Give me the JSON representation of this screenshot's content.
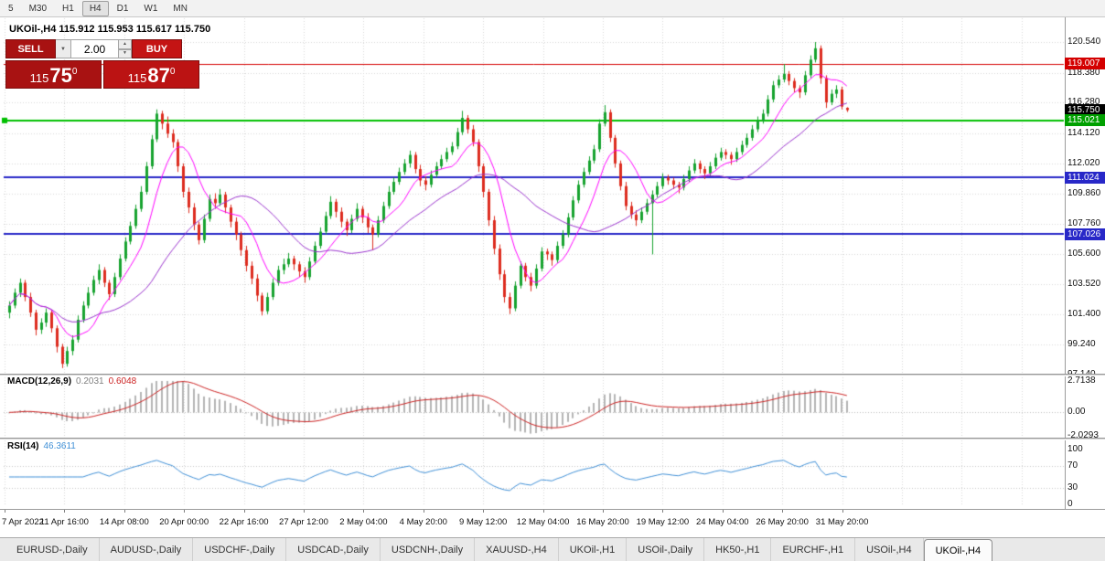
{
  "toolbar": {
    "timeframes": [
      "5",
      "M30",
      "H1",
      "H4",
      "D1",
      "W1",
      "MN"
    ],
    "active_timeframe": "H4"
  },
  "chart_header": {
    "title": "UKOil-,H4 115.912 115.953 115.617 115.750"
  },
  "trade_panel": {
    "sell_label": "SELL",
    "buy_label": "BUY",
    "volume": "2.00",
    "bid_main": "115",
    "bid_big": "75",
    "bid_sup": "0",
    "ask_main": "115",
    "ask_big": "87",
    "ask_sup": "0"
  },
  "price_axis": {
    "ticks": [
      "120.540",
      "118.380",
      "116.280",
      "114.120",
      "112.020",
      "109.860",
      "107.760",
      "105.600",
      "103.520",
      "101.400",
      "99.240",
      "97.140"
    ],
    "badges": [
      {
        "text": "119.007",
        "color": "#d40000"
      },
      {
        "text": "115.750",
        "color": "#000000"
      },
      {
        "text": "115.021",
        "color": "#00a000"
      },
      {
        "text": "111.024",
        "color": "#2828c8"
      },
      {
        "text": "107.026",
        "color": "#2828c8"
      }
    ]
  },
  "indicator_panes": {
    "macd": {
      "name": "MACD(12,26,9)",
      "value_main": "0.2031",
      "value_signal": "0.6048",
      "axis": [
        "2.7138",
        "0.00",
        "-2.0293"
      ]
    },
    "rsi": {
      "name": "RSI(14)",
      "value": "46.3611",
      "axis": [
        "100",
        "70",
        "30",
        "0"
      ]
    }
  },
  "tab_bar": {
    "tabs": [
      "EURUSD-,Daily",
      "AUDUSD-,Daily",
      "USDCHF-,Daily",
      "USDCAD-,Daily",
      "USDCNH-,Daily",
      "XAUUSD-,H4",
      "UKOil-,H1",
      "USOil-,Daily",
      "HK50-,H1",
      "EURCHF-,H1",
      "USOil-,H4",
      "UKOil-,H4"
    ],
    "active": "UKOil-,H4"
  },
  "chart_data": {
    "type": "candlestick",
    "symbol": "UKOil-",
    "timeframe": "H4",
    "current_candle": {
      "open": 115.912,
      "high": 115.953,
      "low": 115.617,
      "close": 115.75
    },
    "ylim": [
      97.14,
      120.54
    ],
    "x_labels": [
      "7 Apr 2022",
      "11 Apr 16:00",
      "14 Apr 08:00",
      "20 Apr 00:00",
      "22 Apr 16:00",
      "27 Apr 12:00",
      "2 May 04:00",
      "4 May 20:00",
      "9 May 12:00",
      "12 May 04:00",
      "16 May 20:00",
      "19 May 12:00",
      "24 May 04:00",
      "26 May 20:00",
      "31 May 20:00"
    ],
    "levels": [
      {
        "price": 119.007,
        "color": "#d40000",
        "width": 1,
        "style": "solid"
      },
      {
        "price": 115.021,
        "color": "#00c000",
        "width": 2,
        "style": "solid"
      },
      {
        "price": 111.024,
        "color": "#2828c8",
        "width": 2,
        "style": "solid"
      },
      {
        "price": 107.026,
        "color": "#2828c8",
        "width": 2,
        "style": "solid"
      }
    ],
    "colors": {
      "up": "#17a32f",
      "down": "#dd2c1f",
      "ma_fast": "#ff00ff",
      "ma_slow": "#9932cc",
      "macd_hist": "#b4b4b4",
      "macd_signal": "#cc2222",
      "rsi_line": "#3f8fd6"
    },
    "ma_overlays": [
      {
        "period": 8,
        "color": "#ff00ff"
      },
      {
        "period": 24,
        "color": "#9932cc"
      }
    ],
    "macd": {
      "fast": 12,
      "slow": 26,
      "signal": 9,
      "range": [
        -2.0293,
        2.7138
      ]
    },
    "rsi": {
      "period": 14,
      "levels": [
        70,
        30
      ],
      "range": [
        0,
        100
      ]
    },
    "candles": [
      [
        101.5,
        102.3,
        101.1,
        102.0
      ],
      [
        102.0,
        103.2,
        101.8,
        102.9
      ],
      [
        102.9,
        103.9,
        102.6,
        103.6
      ],
      [
        103.6,
        103.8,
        102.3,
        102.6
      ],
      [
        102.6,
        102.9,
        101.2,
        101.5
      ],
      [
        101.5,
        101.7,
        99.9,
        100.3
      ],
      [
        100.3,
        101.1,
        100.0,
        100.8
      ],
      [
        100.8,
        101.8,
        100.5,
        101.5
      ],
      [
        101.5,
        101.7,
        100.1,
        100.4
      ],
      [
        100.4,
        100.6,
        98.7,
        99.1
      ],
      [
        99.1,
        99.3,
        97.6,
        97.9
      ],
      [
        97.9,
        99.1,
        97.7,
        98.8
      ],
      [
        98.8,
        99.9,
        98.5,
        99.6
      ],
      [
        99.6,
        101.3,
        99.4,
        101.0
      ],
      [
        101.0,
        102.3,
        100.8,
        102.0
      ],
      [
        102.0,
        103.3,
        101.8,
        102.9
      ],
      [
        102.9,
        104.1,
        102.7,
        103.8
      ],
      [
        103.8,
        104.9,
        103.5,
        104.5
      ],
      [
        104.5,
        104.7,
        103.3,
        103.6
      ],
      [
        103.6,
        103.8,
        102.4,
        102.8
      ],
      [
        102.8,
        104.3,
        102.6,
        104.0
      ],
      [
        104.0,
        105.6,
        103.8,
        105.3
      ],
      [
        105.3,
        106.8,
        105.1,
        106.5
      ],
      [
        106.5,
        107.9,
        106.3,
        107.6
      ],
      [
        107.6,
        109.1,
        107.4,
        108.8
      ],
      [
        108.8,
        110.4,
        108.6,
        110.0
      ],
      [
        110.0,
        112.1,
        109.8,
        111.8
      ],
      [
        111.8,
        114.0,
        111.6,
        113.7
      ],
      [
        113.7,
        115.8,
        113.5,
        115.5
      ],
      [
        115.5,
        115.7,
        114.4,
        114.8
      ],
      [
        114.8,
        115.3,
        113.8,
        114.1
      ],
      [
        114.1,
        114.4,
        113.1,
        113.5
      ],
      [
        113.5,
        113.7,
        111.4,
        111.8
      ],
      [
        111.8,
        112.0,
        109.6,
        110.0
      ],
      [
        110.0,
        110.3,
        108.5,
        108.9
      ],
      [
        108.9,
        109.2,
        107.3,
        107.7
      ],
      [
        107.7,
        107.9,
        106.3,
        106.6
      ],
      [
        106.6,
        108.4,
        106.4,
        108.1
      ],
      [
        108.1,
        109.8,
        107.9,
        109.5
      ],
      [
        109.5,
        109.9,
        108.8,
        109.2
      ],
      [
        109.2,
        110.2,
        109.0,
        109.8
      ],
      [
        109.8,
        110.0,
        108.5,
        108.9
      ],
      [
        108.9,
        109.1,
        107.5,
        107.9
      ],
      [
        107.9,
        108.2,
        106.6,
        107.0
      ],
      [
        107.0,
        107.2,
        105.5,
        105.9
      ],
      [
        105.9,
        106.2,
        104.4,
        104.8
      ],
      [
        104.8,
        105.1,
        103.5,
        103.9
      ],
      [
        103.9,
        104.2,
        102.3,
        102.7
      ],
      [
        102.7,
        102.9,
        101.3,
        101.6
      ],
      [
        101.6,
        102.9,
        101.4,
        102.6
      ],
      [
        102.6,
        103.9,
        102.4,
        103.6
      ],
      [
        103.6,
        104.8,
        103.4,
        104.5
      ],
      [
        104.5,
        105.3,
        104.2,
        104.9
      ],
      [
        104.9,
        105.7,
        104.7,
        105.3
      ],
      [
        105.3,
        105.5,
        104.5,
        104.9
      ],
      [
        104.9,
        105.1,
        104.0,
        104.4
      ],
      [
        104.4,
        104.7,
        103.6,
        104.0
      ],
      [
        104.0,
        105.4,
        103.8,
        105.1
      ],
      [
        105.1,
        106.5,
        104.9,
        106.2
      ],
      [
        106.2,
        107.5,
        106.0,
        107.2
      ],
      [
        107.2,
        108.6,
        107.0,
        108.3
      ],
      [
        108.3,
        109.7,
        108.1,
        109.3
      ],
      [
        109.3,
        109.5,
        108.2,
        108.6
      ],
      [
        108.6,
        108.9,
        107.5,
        107.9
      ],
      [
        107.9,
        108.1,
        106.9,
        107.3
      ],
      [
        107.3,
        108.4,
        107.1,
        108.1
      ],
      [
        108.1,
        109.2,
        107.9,
        108.8
      ],
      [
        108.8,
        109.0,
        107.8,
        108.2
      ],
      [
        108.2,
        108.5,
        107.1,
        107.5
      ],
      [
        107.5,
        107.7,
        105.9,
        107.0
      ],
      [
        107.0,
        108.3,
        106.8,
        108.0
      ],
      [
        108.0,
        109.3,
        107.8,
        109.0
      ],
      [
        109.0,
        110.4,
        108.8,
        110.0
      ],
      [
        110.0,
        111.0,
        109.8,
        110.7
      ],
      [
        110.7,
        111.7,
        110.5,
        111.4
      ],
      [
        111.4,
        112.3,
        111.2,
        112.0
      ],
      [
        112.0,
        112.9,
        111.7,
        112.6
      ],
      [
        112.6,
        112.8,
        111.3,
        111.6
      ],
      [
        111.6,
        111.9,
        110.4,
        110.8
      ],
      [
        110.8,
        111.1,
        110.1,
        110.5
      ],
      [
        110.5,
        111.5,
        110.3,
        111.2
      ],
      [
        111.2,
        112.1,
        111.0,
        111.8
      ],
      [
        111.8,
        112.6,
        111.6,
        112.3
      ],
      [
        112.3,
        113.1,
        112.1,
        112.8
      ],
      [
        112.8,
        113.5,
        112.6,
        113.2
      ],
      [
        113.2,
        114.5,
        113.0,
        114.2
      ],
      [
        114.2,
        115.7,
        114.0,
        115.2
      ],
      [
        115.2,
        115.4,
        114.1,
        114.4
      ],
      [
        114.4,
        114.7,
        113.2,
        113.5
      ],
      [
        113.5,
        113.7,
        111.4,
        111.8
      ],
      [
        111.8,
        112.0,
        109.6,
        110.0
      ],
      [
        110.0,
        110.2,
        107.6,
        108.0
      ],
      [
        108.0,
        108.3,
        105.6,
        106.0
      ],
      [
        106.0,
        106.3,
        103.8,
        104.2
      ],
      [
        104.2,
        104.5,
        102.2,
        102.6
      ],
      [
        102.6,
        102.9,
        101.4,
        101.8
      ],
      [
        101.8,
        103.7,
        101.6,
        103.4
      ],
      [
        103.4,
        105.1,
        103.2,
        104.8
      ],
      [
        104.8,
        105.0,
        103.7,
        104.0
      ],
      [
        104.0,
        104.3,
        103.0,
        103.4
      ],
      [
        103.4,
        104.9,
        103.2,
        104.6
      ],
      [
        104.6,
        106.1,
        104.4,
        105.8
      ],
      [
        105.8,
        106.0,
        105.2,
        105.6
      ],
      [
        105.6,
        105.8,
        104.8,
        105.2
      ],
      [
        105.2,
        106.5,
        105.0,
        106.2
      ],
      [
        106.2,
        107.3,
        106.0,
        107.0
      ],
      [
        107.0,
        108.5,
        106.8,
        108.2
      ],
      [
        108.2,
        109.7,
        108.0,
        109.4
      ],
      [
        109.4,
        110.8,
        109.2,
        110.5
      ],
      [
        110.5,
        111.7,
        110.3,
        111.4
      ],
      [
        111.4,
        112.5,
        111.2,
        112.2
      ],
      [
        112.2,
        113.3,
        112.0,
        113.0
      ],
      [
        113.0,
        115.1,
        112.8,
        114.8
      ],
      [
        114.8,
        116.1,
        114.6,
        115.6
      ],
      [
        115.6,
        115.8,
        113.5,
        113.8
      ],
      [
        113.8,
        114.0,
        111.7,
        112.0
      ],
      [
        112.0,
        112.2,
        110.1,
        110.4
      ],
      [
        110.4,
        110.7,
        108.7,
        109.0
      ],
      [
        109.0,
        109.3,
        108.1,
        108.4
      ],
      [
        108.4,
        108.7,
        107.6,
        108.0
      ],
      [
        108.0,
        108.9,
        107.8,
        108.6
      ],
      [
        108.6,
        109.5,
        108.4,
        109.2
      ],
      [
        109.2,
        110.1,
        105.6,
        109.8
      ],
      [
        109.8,
        110.7,
        109.6,
        110.4
      ],
      [
        110.4,
        111.3,
        110.2,
        111.0
      ],
      [
        111.0,
        111.2,
        110.5,
        110.8
      ],
      [
        110.8,
        111.0,
        110.2,
        110.5
      ],
      [
        110.5,
        110.7,
        109.9,
        110.3
      ],
      [
        110.3,
        111.2,
        110.1,
        110.9
      ],
      [
        110.9,
        111.8,
        110.7,
        111.5
      ],
      [
        111.5,
        112.3,
        111.3,
        112.0
      ],
      [
        112.0,
        112.2,
        111.3,
        111.6
      ],
      [
        111.6,
        111.8,
        110.9,
        111.3
      ],
      [
        111.3,
        112.1,
        111.1,
        111.8
      ],
      [
        111.8,
        112.7,
        111.6,
        112.4
      ],
      [
        112.4,
        113.1,
        112.2,
        112.8
      ],
      [
        112.8,
        113.0,
        112.3,
        112.6
      ],
      [
        112.6,
        112.8,
        111.9,
        112.3
      ],
      [
        112.3,
        113.1,
        112.1,
        112.8
      ],
      [
        112.8,
        113.6,
        112.6,
        113.3
      ],
      [
        113.3,
        114.1,
        113.1,
        113.8
      ],
      [
        113.8,
        114.7,
        113.6,
        114.4
      ],
      [
        114.4,
        115.3,
        114.2,
        115.0
      ],
      [
        115.0,
        115.8,
        114.8,
        115.5
      ],
      [
        115.5,
        116.8,
        115.3,
        116.5
      ],
      [
        116.5,
        117.8,
        116.3,
        117.5
      ],
      [
        117.5,
        118.2,
        117.3,
        117.9
      ],
      [
        117.9,
        119.0,
        117.7,
        118.3
      ],
      [
        118.3,
        118.5,
        117.5,
        117.8
      ],
      [
        117.8,
        118.0,
        117.0,
        117.3
      ],
      [
        117.3,
        117.5,
        116.6,
        117.0
      ],
      [
        117.0,
        118.5,
        116.8,
        118.2
      ],
      [
        118.2,
        119.6,
        118.0,
        119.3
      ],
      [
        119.3,
        120.54,
        119.1,
        120.1
      ],
      [
        120.1,
        120.3,
        117.6,
        118.0
      ],
      [
        118.0,
        118.2,
        115.9,
        116.3
      ],
      [
        116.3,
        117.2,
        116.1,
        116.9
      ],
      [
        116.9,
        117.5,
        116.6,
        117.2
      ],
      [
        117.2,
        117.4,
        115.8,
        116.0
      ],
      [
        115.91,
        115.95,
        115.62,
        115.75
      ]
    ]
  }
}
